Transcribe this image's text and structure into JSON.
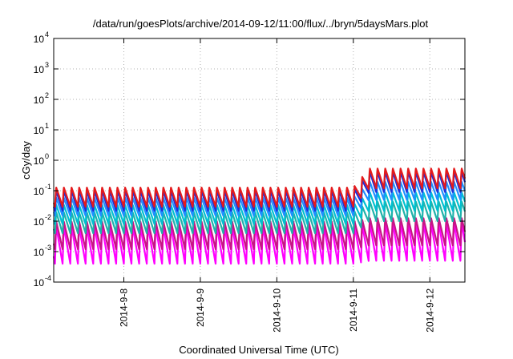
{
  "chart_data": {
    "type": "line",
    "title": "/data/run/goesPlots/archive/2014-09-12/11:00/flux/../bryn/5daysMars.plot",
    "xlabel": "Coordinated Universal Time (UTC)",
    "ylabel": "cGy/day",
    "y_scale": "log",
    "ylim": [
      0.0001,
      10000
    ],
    "y_ticks": [
      {
        "base": "10",
        "exp": "-4",
        "value": 0.0001
      },
      {
        "base": "10",
        "exp": "-3",
        "value": 0.001
      },
      {
        "base": "10",
        "exp": "-2",
        "value": 0.01
      },
      {
        "base": "10",
        "exp": "-1",
        "value": 0.1
      },
      {
        "base": "10",
        "exp": "0",
        "value": 1
      },
      {
        "base": "10",
        "exp": "1",
        "value": 10
      },
      {
        "base": "10",
        "exp": "2",
        "value": 100
      },
      {
        "base": "10",
        "exp": "3",
        "value": 1000
      },
      {
        "base": "10",
        "exp": "4",
        "value": 10000
      }
    ],
    "xlim": [
      "2014-09-07T02:00",
      "2014-09-12T11:00"
    ],
    "x_ticks": [
      {
        "label": "2014-9-8",
        "value": "2014-09-08"
      },
      {
        "label": "2014-9-9",
        "value": "2014-09-09"
      },
      {
        "label": "2014-9-10",
        "value": "2014-09-10"
      },
      {
        "label": "2014-9-11",
        "value": "2014-09-11"
      },
      {
        "label": "2014-9-12",
        "value": "2014-09-12"
      }
    ],
    "grid": true,
    "pattern": {
      "cycles_per_day": 10,
      "cycle_hours": 2.4,
      "elevated_from": "2014-09-11T00:00"
    },
    "series": [
      {
        "color": "#e41a1c",
        "peak": 0.13,
        "trough": 0.03,
        "elevated_peak": 0.55,
        "elevated_trough": 0.12
      },
      {
        "color": "#2030d8",
        "peak": 0.1,
        "trough": 0.022,
        "elevated_peak": 0.42,
        "elevated_trough": 0.09
      },
      {
        "color": "#1e90ff",
        "peak": 0.06,
        "trough": 0.015,
        "elevated_peak": 0.2,
        "elevated_trough": 0.05
      },
      {
        "color": "#00c0d0",
        "peak": 0.035,
        "trough": 0.008,
        "elevated_peak": 0.09,
        "elevated_trough": 0.022
      },
      {
        "color": "#20b2aa",
        "peak": 0.02,
        "trough": 0.004,
        "elevated_peak": 0.045,
        "elevated_trough": 0.01
      },
      {
        "color": "#c71585",
        "peak": 0.01,
        "trough": 0.0012,
        "elevated_peak": 0.013,
        "elevated_trough": 0.0016
      },
      {
        "color": "#ff00ff",
        "peak": 0.007,
        "trough": 0.0004,
        "elevated_peak": 0.009,
        "elevated_trough": 0.0005
      }
    ]
  }
}
